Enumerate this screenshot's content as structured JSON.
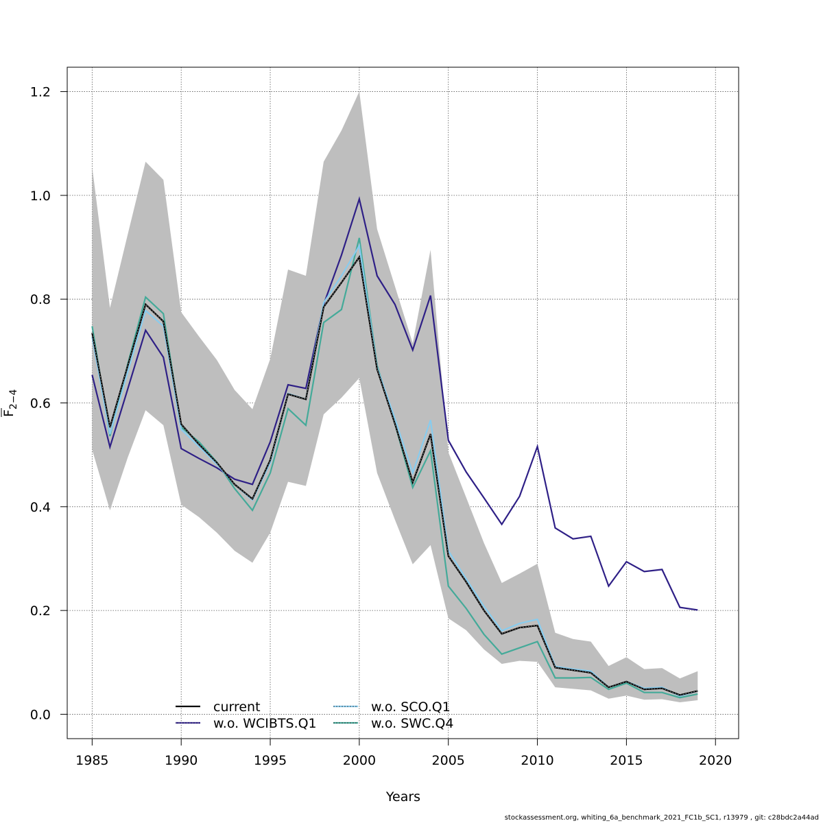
{
  "chart_data": {
    "type": "line",
    "title": "",
    "xlabel": "Years",
    "ylabel": "F̄ 2−4",
    "ylabel_main": "F",
    "ylabel_sub": "2−4",
    "xlim": [
      1983.6,
      2021.3
    ],
    "ylim": [
      -0.047,
      1.247
    ],
    "x_ticks": [
      1985,
      1990,
      1995,
      2000,
      2005,
      2010,
      2015,
      2020
    ],
    "x_tick_labels": [
      "1985",
      "1990",
      "1995",
      "2000",
      "2005",
      "2010",
      "2015",
      "2020"
    ],
    "y_ticks": [
      0.0,
      0.2,
      0.4,
      0.6,
      0.8,
      1.0,
      1.2
    ],
    "y_tick_labels": [
      "0.0",
      "0.2",
      "0.4",
      "0.6",
      "0.8",
      "1.0",
      "1.2"
    ],
    "grid": true,
    "legend_position": "bottom-left",
    "x": [
      1985,
      1986,
      1987,
      1988,
      1989,
      1990,
      1991,
      1992,
      1993,
      1994,
      1995,
      1996,
      1997,
      1998,
      1999,
      2000,
      2001,
      2002,
      2003,
      2004,
      2005,
      2006,
      2007,
      2008,
      2009,
      2010,
      2011,
      2012,
      2013,
      2014,
      2015,
      2016,
      2017,
      2018,
      2019
    ],
    "confidence_band": {
      "name": "current CI",
      "color": "#bebebe",
      "lower": [
        0.51,
        0.393,
        0.495,
        0.586,
        0.557,
        0.404,
        0.38,
        0.35,
        0.315,
        0.292,
        0.35,
        0.448,
        0.44,
        0.578,
        0.61,
        0.648,
        0.465,
        0.375,
        0.289,
        0.326,
        0.185,
        0.162,
        0.125,
        0.097,
        0.103,
        0.101,
        0.052,
        0.049,
        0.046,
        0.03,
        0.036,
        0.028,
        0.029,
        0.023,
        0.027
      ],
      "upper": [
        1.055,
        0.783,
        0.925,
        1.065,
        1.03,
        0.775,
        0.728,
        0.683,
        0.625,
        0.588,
        0.685,
        0.857,
        0.845,
        1.065,
        1.125,
        1.2,
        0.935,
        0.825,
        0.715,
        0.895,
        0.505,
        0.418,
        0.33,
        0.253,
        0.271,
        0.29,
        0.157,
        0.145,
        0.14,
        0.093,
        0.11,
        0.087,
        0.089,
        0.069,
        0.083
      ]
    },
    "series": [
      {
        "name": "current",
        "color": "#000000",
        "dashed": false,
        "values": [
          0.735,
          0.553,
          0.672,
          0.79,
          0.757,
          0.559,
          0.52,
          0.485,
          0.443,
          0.415,
          0.49,
          0.617,
          0.607,
          0.785,
          0.832,
          0.881,
          0.665,
          0.56,
          0.447,
          0.54,
          0.305,
          0.255,
          0.2,
          0.155,
          0.167,
          0.171,
          0.09,
          0.085,
          0.08,
          0.052,
          0.063,
          0.048,
          0.05,
          0.037,
          0.045
        ]
      },
      {
        "name": "w.o. WCIBTS.Q1",
        "color": "#2e1f86",
        "dashed": false,
        "values": [
          0.654,
          0.515,
          0.627,
          0.74,
          0.688,
          0.512,
          0.493,
          0.475,
          0.453,
          0.443,
          0.525,
          0.635,
          0.628,
          0.79,
          0.885,
          0.993,
          0.845,
          0.79,
          0.702,
          0.807,
          0.528,
          0.467,
          0.417,
          0.366,
          0.42,
          0.516,
          0.359,
          0.338,
          0.343,
          0.247,
          0.294,
          0.275,
          0.279,
          0.206,
          0.201
        ]
      },
      {
        "name": "w.o. SCO.Q1",
        "color": "#88ccee",
        "dashed": true,
        "values": [
          0.727,
          0.54,
          0.66,
          0.778,
          0.748,
          0.549,
          0.516,
          0.482,
          0.443,
          0.413,
          0.485,
          0.618,
          0.607,
          0.793,
          0.845,
          0.903,
          0.668,
          0.57,
          0.465,
          0.567,
          0.315,
          0.261,
          0.208,
          0.161,
          0.175,
          0.183,
          0.092,
          0.087,
          0.083,
          0.052,
          0.063,
          0.05,
          0.052,
          0.035,
          0.045
        ]
      },
      {
        "name": "w.o. SWC.Q4",
        "color": "#44aa99",
        "dashed": true,
        "values": [
          0.748,
          0.536,
          0.675,
          0.804,
          0.772,
          0.553,
          0.525,
          0.486,
          0.435,
          0.393,
          0.465,
          0.589,
          0.557,
          0.755,
          0.78,
          0.918,
          0.672,
          0.56,
          0.437,
          0.508,
          0.247,
          0.204,
          0.154,
          0.116,
          0.128,
          0.14,
          0.07,
          0.07,
          0.071,
          0.048,
          0.06,
          0.042,
          0.042,
          0.032,
          0.039
        ]
      }
    ]
  },
  "legend": {
    "items": [
      {
        "label": "current",
        "color": "#000000",
        "style": "solid"
      },
      {
        "label": "w.o. WCIBTS.Q1",
        "color": "#2e1f86",
        "style": "solid"
      },
      {
        "label": "w.o. SCO.Q1",
        "color": "#88ccee",
        "style": "dotted"
      },
      {
        "label": "w.o. SWC.Q4",
        "color": "#44aa99",
        "style": "dotted"
      }
    ]
  },
  "footer": {
    "text": "stockassessment.org, whiting_6a_benchmark_2021_FC1b_SC1, r13979 , git: c28bdc2a44ad"
  }
}
